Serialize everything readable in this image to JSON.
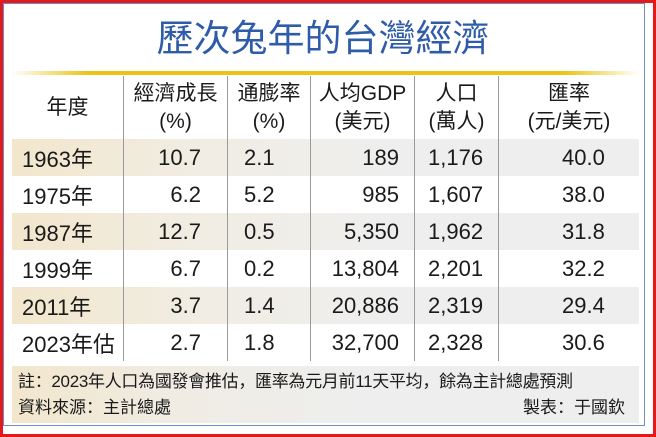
{
  "title": "歷次兔年的台灣經濟",
  "colors": {
    "outer_border": "#e3191b",
    "inner_border": "#6d8fc7",
    "title": "#2f5ca8",
    "accent_bar": "#ecc416",
    "stripe_left": "#f2e6cc",
    "stripe_right": "#eeeeee"
  },
  "table": {
    "headers": [
      {
        "line1": "年度",
        "line2": ""
      },
      {
        "line1": "經濟成長",
        "line2": "(%)"
      },
      {
        "line1": "通膨率",
        "line2": "(%)"
      },
      {
        "line1": "人均GDP",
        "line2": "(美元)"
      },
      {
        "line1": "人口",
        "line2": "(萬人)"
      },
      {
        "line1": "匯率",
        "line2": "(元/美元)"
      }
    ],
    "rows": [
      {
        "year": "1963年",
        "growth": "10.7",
        "inflation": "2.1",
        "gdp_per_capita": "189",
        "population": "1,176",
        "exchange_rate": "40.0"
      },
      {
        "year": "1975年",
        "growth": "6.2",
        "inflation": "5.2",
        "gdp_per_capita": "985",
        "population": "1,607",
        "exchange_rate": "38.0"
      },
      {
        "year": "1987年",
        "growth": "12.7",
        "inflation": "0.5",
        "gdp_per_capita": "5,350",
        "population": "1,962",
        "exchange_rate": "31.8"
      },
      {
        "year": "1999年",
        "growth": "6.7",
        "inflation": "0.2",
        "gdp_per_capita": "13,804",
        "population": "2,201",
        "exchange_rate": "32.2"
      },
      {
        "year": "2011年",
        "growth": "3.7",
        "inflation": "1.4",
        "gdp_per_capita": "20,886",
        "population": "2,319",
        "exchange_rate": "29.4"
      },
      {
        "year": "2023年估",
        "growth": "2.7",
        "inflation": "1.8",
        "gdp_per_capita": "32,700",
        "population": "2,328",
        "exchange_rate": "30.6"
      }
    ]
  },
  "footnote": {
    "note": "註：2023年人口為國發會推估，匯率為元月前11天平均，餘為主計總處預測",
    "source": "資料來源：主計總處",
    "maker": "製表：于國欽"
  }
}
